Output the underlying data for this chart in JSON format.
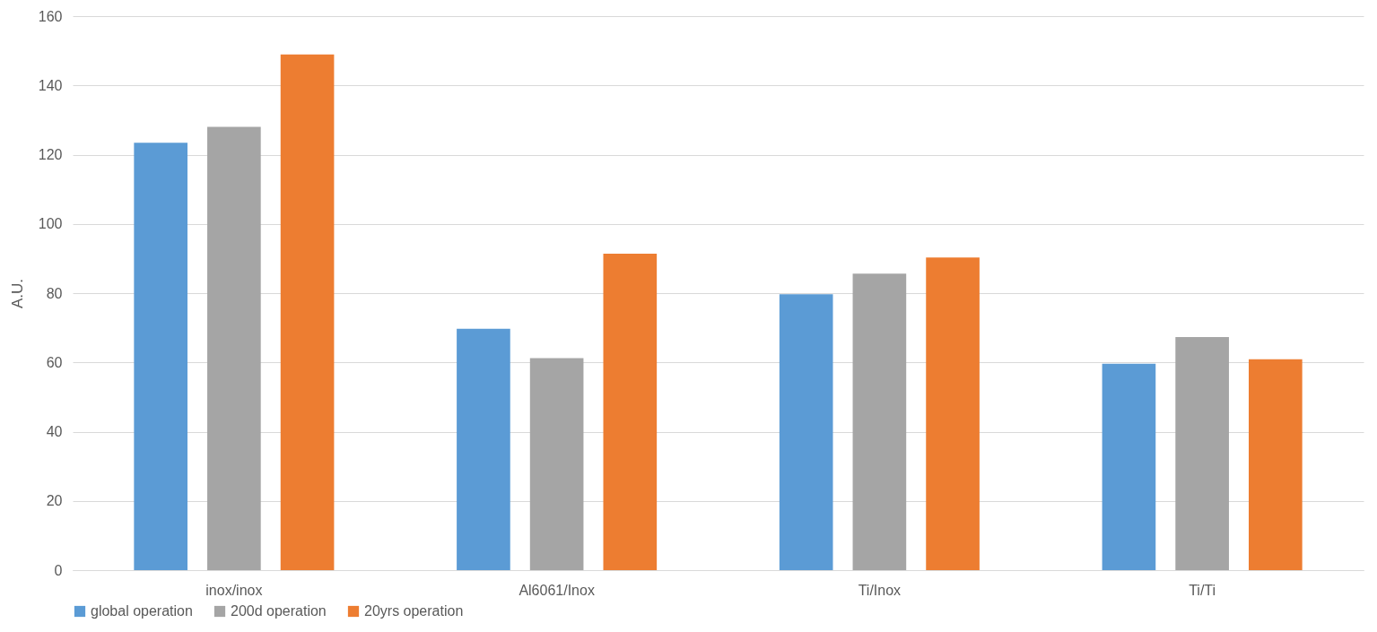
{
  "chart_data": {
    "type": "bar",
    "categories": [
      "inox/inox",
      "Al6061/Inox",
      "Ti/Inox",
      "Ti/Ti"
    ],
    "ylabel": "A.U.",
    "ylim": [
      0,
      160
    ],
    "yticks": [
      0,
      20,
      40,
      60,
      80,
      100,
      120,
      140,
      160
    ],
    "grid": "y",
    "legend": "bottom",
    "series": [
      {
        "name": "global operation",
        "color": "#5b9bd5",
        "values": [
          123.4,
          69.7,
          79.7,
          59.6
        ]
      },
      {
        "name": "200d operation",
        "color": "#a5a5a5",
        "values": [
          128,
          61.2,
          85.6,
          67.3
        ]
      },
      {
        "name": "20yrs operation",
        "color": "#ed7d31",
        "values": [
          148.9,
          91.4,
          90.3,
          60.9
        ]
      }
    ]
  }
}
